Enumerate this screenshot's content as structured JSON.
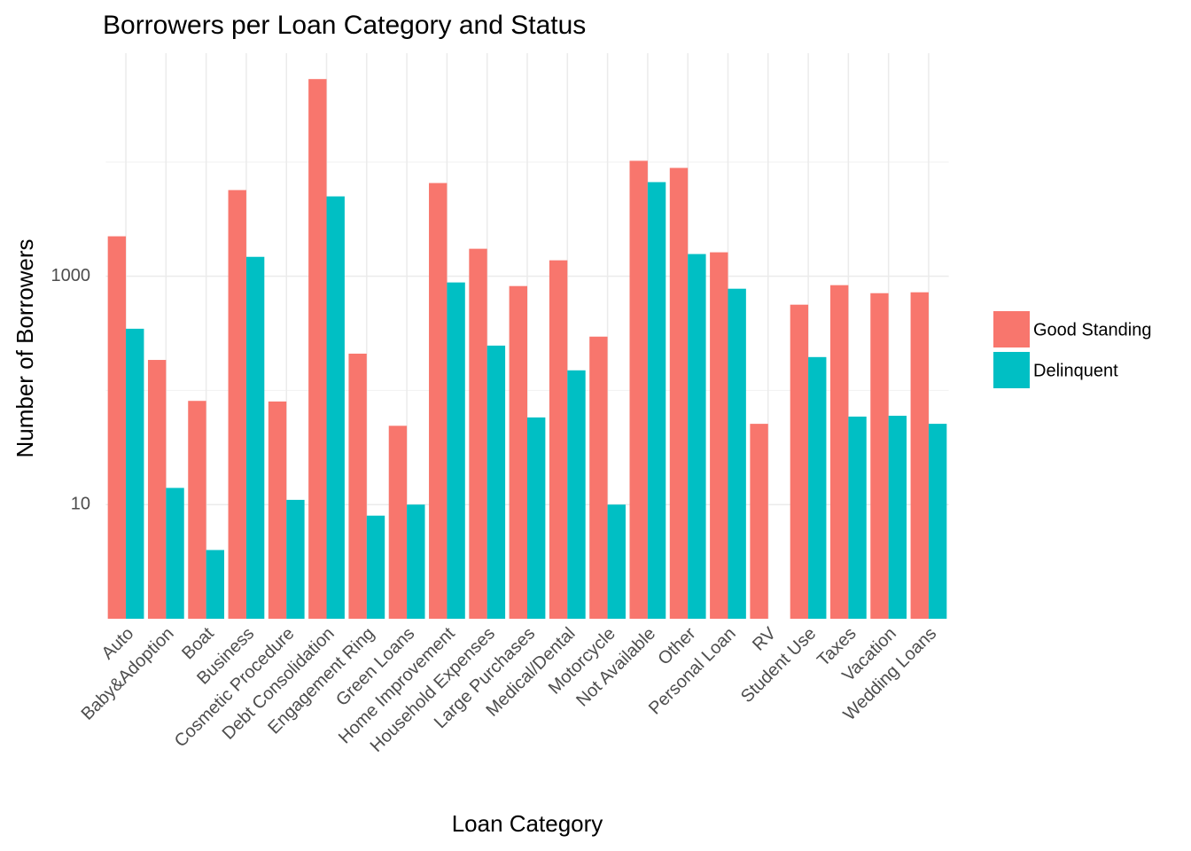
{
  "chart_data": {
    "type": "bar",
    "title": "Borrowers per Loan Category and Status",
    "x_label": "Loan Category",
    "y_label": "Number of Borrowers",
    "categories": [
      "Auto",
      "Baby&Adoption",
      "Boat",
      "Business",
      "Cosmetic Procedure",
      "Debt Consolidation",
      "Engagement Ring",
      "Green Loans",
      "Home Improvement",
      "Household Expenses",
      "Large Purchases",
      "Medical/Dental",
      "Motorcycle",
      "Not Available",
      "Other",
      "Personal Loan",
      "RV",
      "Student Use",
      "Taxes",
      "Vacation",
      "Wedding Loans"
    ],
    "series": [
      {
        "name": "Good Standing",
        "color": "#f8766d",
        "values": [
          2240,
          185,
          81,
          5690,
          80,
          53400,
          210,
          49,
          6560,
          1742,
          821,
          1380,
          296,
          10270,
          8900,
          1622,
          51,
          564,
          836,
          711,
          724
        ]
      },
      {
        "name": "Delinquent",
        "color": "#00bfc4",
        "values": [
          347,
          14,
          4,
          1480,
          11,
          5010,
          8,
          10,
          883,
          247,
          58,
          150,
          10,
          6680,
          1566,
          778,
          null,
          196,
          59,
          60,
          51
        ]
      }
    ],
    "log_scale": true,
    "ylim": [
      1,
      90000
    ],
    "yticks": [
      10,
      1000
    ],
    "yminor": [
      100,
      10000
    ],
    "grid": true,
    "legend_position": "right"
  }
}
